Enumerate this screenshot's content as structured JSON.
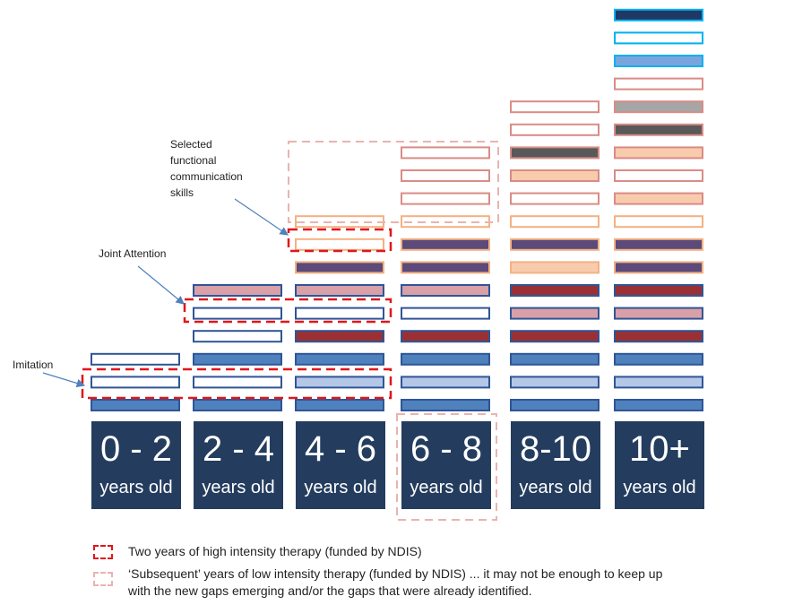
{
  "age_groups": [
    {
      "range": "0 - 2",
      "unit": "years old"
    },
    {
      "range": "2 - 4",
      "unit": "years old"
    },
    {
      "range": "4 - 6",
      "unit": "years old"
    },
    {
      "range": "6 - 8",
      "unit": "years old"
    },
    {
      "range": "8-10",
      "unit": "years old"
    },
    {
      "range": "10+",
      "unit": "years old"
    }
  ],
  "annotations": {
    "imitation": "Imitation",
    "joint_attention": "Joint Attention",
    "functional_communication": [
      "Selected",
      "functional",
      "communication",
      "skills"
    ]
  },
  "legend": {
    "high_intensity": "Two years of high intensity therapy (funded by NDIS)",
    "low_intensity_line1": "‘Subsequent’ years of low intensity therapy (funded by NDIS) ... it may not be enough to keep up",
    "low_intensity_line2": "with the new gaps emerging and/or the gaps that were already identified."
  },
  "colors": {
    "age_box": "#243d5f",
    "high_intensity_outline": "#e0161a",
    "low_intensity_outline": "#e8b4b0",
    "arrow": "#4f81bd"
  },
  "skill_bars": [
    {
      "col": 0,
      "row": 0,
      "fill": "#4f81bd",
      "stroke": "#2f5597"
    },
    {
      "col": 0,
      "row": 1,
      "fill": "#ffffff",
      "stroke": "#2f5597"
    },
    {
      "col": 0,
      "row": 2,
      "fill": "#ffffff",
      "stroke": "#2f5597"
    },
    {
      "col": 1,
      "row": 0,
      "fill": "#4f81bd",
      "stroke": "#2f5597"
    },
    {
      "col": 1,
      "row": 1,
      "fill": "#ffffff",
      "stroke": "#2f5597"
    },
    {
      "col": 1,
      "row": 2,
      "fill": "#4f81bd",
      "stroke": "#2f5597"
    },
    {
      "col": 1,
      "row": 3,
      "fill": "#ffffff",
      "stroke": "#2f5597"
    },
    {
      "col": 1,
      "row": 4,
      "fill": "#ffffff",
      "stroke": "#2f5597"
    },
    {
      "col": 1,
      "row": 5,
      "fill": "#d9a0a8",
      "stroke": "#2f5597"
    },
    {
      "col": 2,
      "row": 0,
      "fill": "#4f81bd",
      "stroke": "#2f5597"
    },
    {
      "col": 2,
      "row": 1,
      "fill": "#b4c7e7",
      "stroke": "#2f5597"
    },
    {
      "col": 2,
      "row": 2,
      "fill": "#4f81bd",
      "stroke": "#2f5597"
    },
    {
      "col": 2,
      "row": 3,
      "fill": "#9b3034",
      "stroke": "#2f5597"
    },
    {
      "col": 2,
      "row": 4,
      "fill": "#ffffff",
      "stroke": "#2f5597"
    },
    {
      "col": 2,
      "row": 5,
      "fill": "#d9a0a8",
      "stroke": "#2f5597"
    },
    {
      "col": 2,
      "row": 6,
      "fill": "#5b4a7a",
      "stroke": "#f4b183"
    },
    {
      "col": 2,
      "row": 7,
      "fill": "#ffffff",
      "stroke": "#f4b183"
    },
    {
      "col": 2,
      "row": 8,
      "fill": "#ffffff",
      "stroke": "#f4b183"
    },
    {
      "col": 3,
      "row": 0,
      "fill": "#4f81bd",
      "stroke": "#2f5597"
    },
    {
      "col": 3,
      "row": 1,
      "fill": "#b4c7e7",
      "stroke": "#2f5597"
    },
    {
      "col": 3,
      "row": 2,
      "fill": "#4f81bd",
      "stroke": "#2f5597"
    },
    {
      "col": 3,
      "row": 3,
      "fill": "#9b3034",
      "stroke": "#2f5597"
    },
    {
      "col": 3,
      "row": 4,
      "fill": "#ffffff",
      "stroke": "#2f5597"
    },
    {
      "col": 3,
      "row": 5,
      "fill": "#d9a0a8",
      "stroke": "#2f5597"
    },
    {
      "col": 3,
      "row": 6,
      "fill": "#5b4a7a",
      "stroke": "#f4b183"
    },
    {
      "col": 3,
      "row": 7,
      "fill": "#5b4a7a",
      "stroke": "#f4b183"
    },
    {
      "col": 3,
      "row": 8,
      "fill": "#ffffff",
      "stroke": "#f4b183"
    },
    {
      "col": 3,
      "row": 9,
      "fill": "#ffffff",
      "stroke": "#d98c86"
    },
    {
      "col": 3,
      "row": 10,
      "fill": "#ffffff",
      "stroke": "#d98c86"
    },
    {
      "col": 3,
      "row": 11,
      "fill": "#ffffff",
      "stroke": "#d98c86"
    },
    {
      "col": 4,
      "row": 0,
      "fill": "#4f81bd",
      "stroke": "#2f5597"
    },
    {
      "col": 4,
      "row": 1,
      "fill": "#b4c7e7",
      "stroke": "#2f5597"
    },
    {
      "col": 4,
      "row": 2,
      "fill": "#4f81bd",
      "stroke": "#2f5597"
    },
    {
      "col": 4,
      "row": 3,
      "fill": "#9b3034",
      "stroke": "#2f5597"
    },
    {
      "col": 4,
      "row": 4,
      "fill": "#d9a0a8",
      "stroke": "#2f5597"
    },
    {
      "col": 4,
      "row": 5,
      "fill": "#9b3034",
      "stroke": "#2f5597"
    },
    {
      "col": 4,
      "row": 6,
      "fill": "#f8cbad",
      "stroke": "#f4b183"
    },
    {
      "col": 4,
      "row": 7,
      "fill": "#5b4a7a",
      "stroke": "#f4b183"
    },
    {
      "col": 4,
      "row": 8,
      "fill": "#ffffff",
      "stroke": "#f4b183"
    },
    {
      "col": 4,
      "row": 9,
      "fill": "#ffffff",
      "stroke": "#d98c86"
    },
    {
      "col": 4,
      "row": 10,
      "fill": "#f8cbad",
      "stroke": "#d98c86"
    },
    {
      "col": 4,
      "row": 11,
      "fill": "#595959",
      "stroke": "#d98c86"
    },
    {
      "col": 4,
      "row": 12,
      "fill": "#ffffff",
      "stroke": "#d98c86"
    },
    {
      "col": 4,
      "row": 13,
      "fill": "#ffffff",
      "stroke": "#d98c86"
    },
    {
      "col": 5,
      "row": 0,
      "fill": "#4f81bd",
      "stroke": "#2f5597"
    },
    {
      "col": 5,
      "row": 1,
      "fill": "#b4c7e7",
      "stroke": "#2f5597"
    },
    {
      "col": 5,
      "row": 2,
      "fill": "#4f81bd",
      "stroke": "#2f5597"
    },
    {
      "col": 5,
      "row": 3,
      "fill": "#9b3034",
      "stroke": "#2f5597"
    },
    {
      "col": 5,
      "row": 4,
      "fill": "#d9a0a8",
      "stroke": "#2f5597"
    },
    {
      "col": 5,
      "row": 5,
      "fill": "#9b3034",
      "stroke": "#2f5597"
    },
    {
      "col": 5,
      "row": 6,
      "fill": "#5b4a7a",
      "stroke": "#f4b183"
    },
    {
      "col": 5,
      "row": 7,
      "fill": "#5b4a7a",
      "stroke": "#f4b183"
    },
    {
      "col": 5,
      "row": 8,
      "fill": "#ffffff",
      "stroke": "#f4b183"
    },
    {
      "col": 5,
      "row": 9,
      "fill": "#f8cbad",
      "stroke": "#d98c86"
    },
    {
      "col": 5,
      "row": 10,
      "fill": "#ffffff",
      "stroke": "#d98c86"
    },
    {
      "col": 5,
      "row": 11,
      "fill": "#f8cbad",
      "stroke": "#d98c86"
    },
    {
      "col": 5,
      "row": 12,
      "fill": "#595959",
      "stroke": "#d98c86"
    },
    {
      "col": 5,
      "row": 13,
      "fill": "#a6a6a6",
      "stroke": "#d98c86"
    },
    {
      "col": 5,
      "row": 14,
      "fill": "#ffffff",
      "stroke": "#d98c86"
    },
    {
      "col": 5,
      "row": 15,
      "fill": "#7aa5dc",
      "stroke": "#00b0f0"
    },
    {
      "col": 5,
      "row": 16,
      "fill": "#ffffff",
      "stroke": "#00b0f0"
    },
    {
      "col": 5,
      "row": 17,
      "fill": "#1f3864",
      "stroke": "#00b0f0"
    }
  ]
}
